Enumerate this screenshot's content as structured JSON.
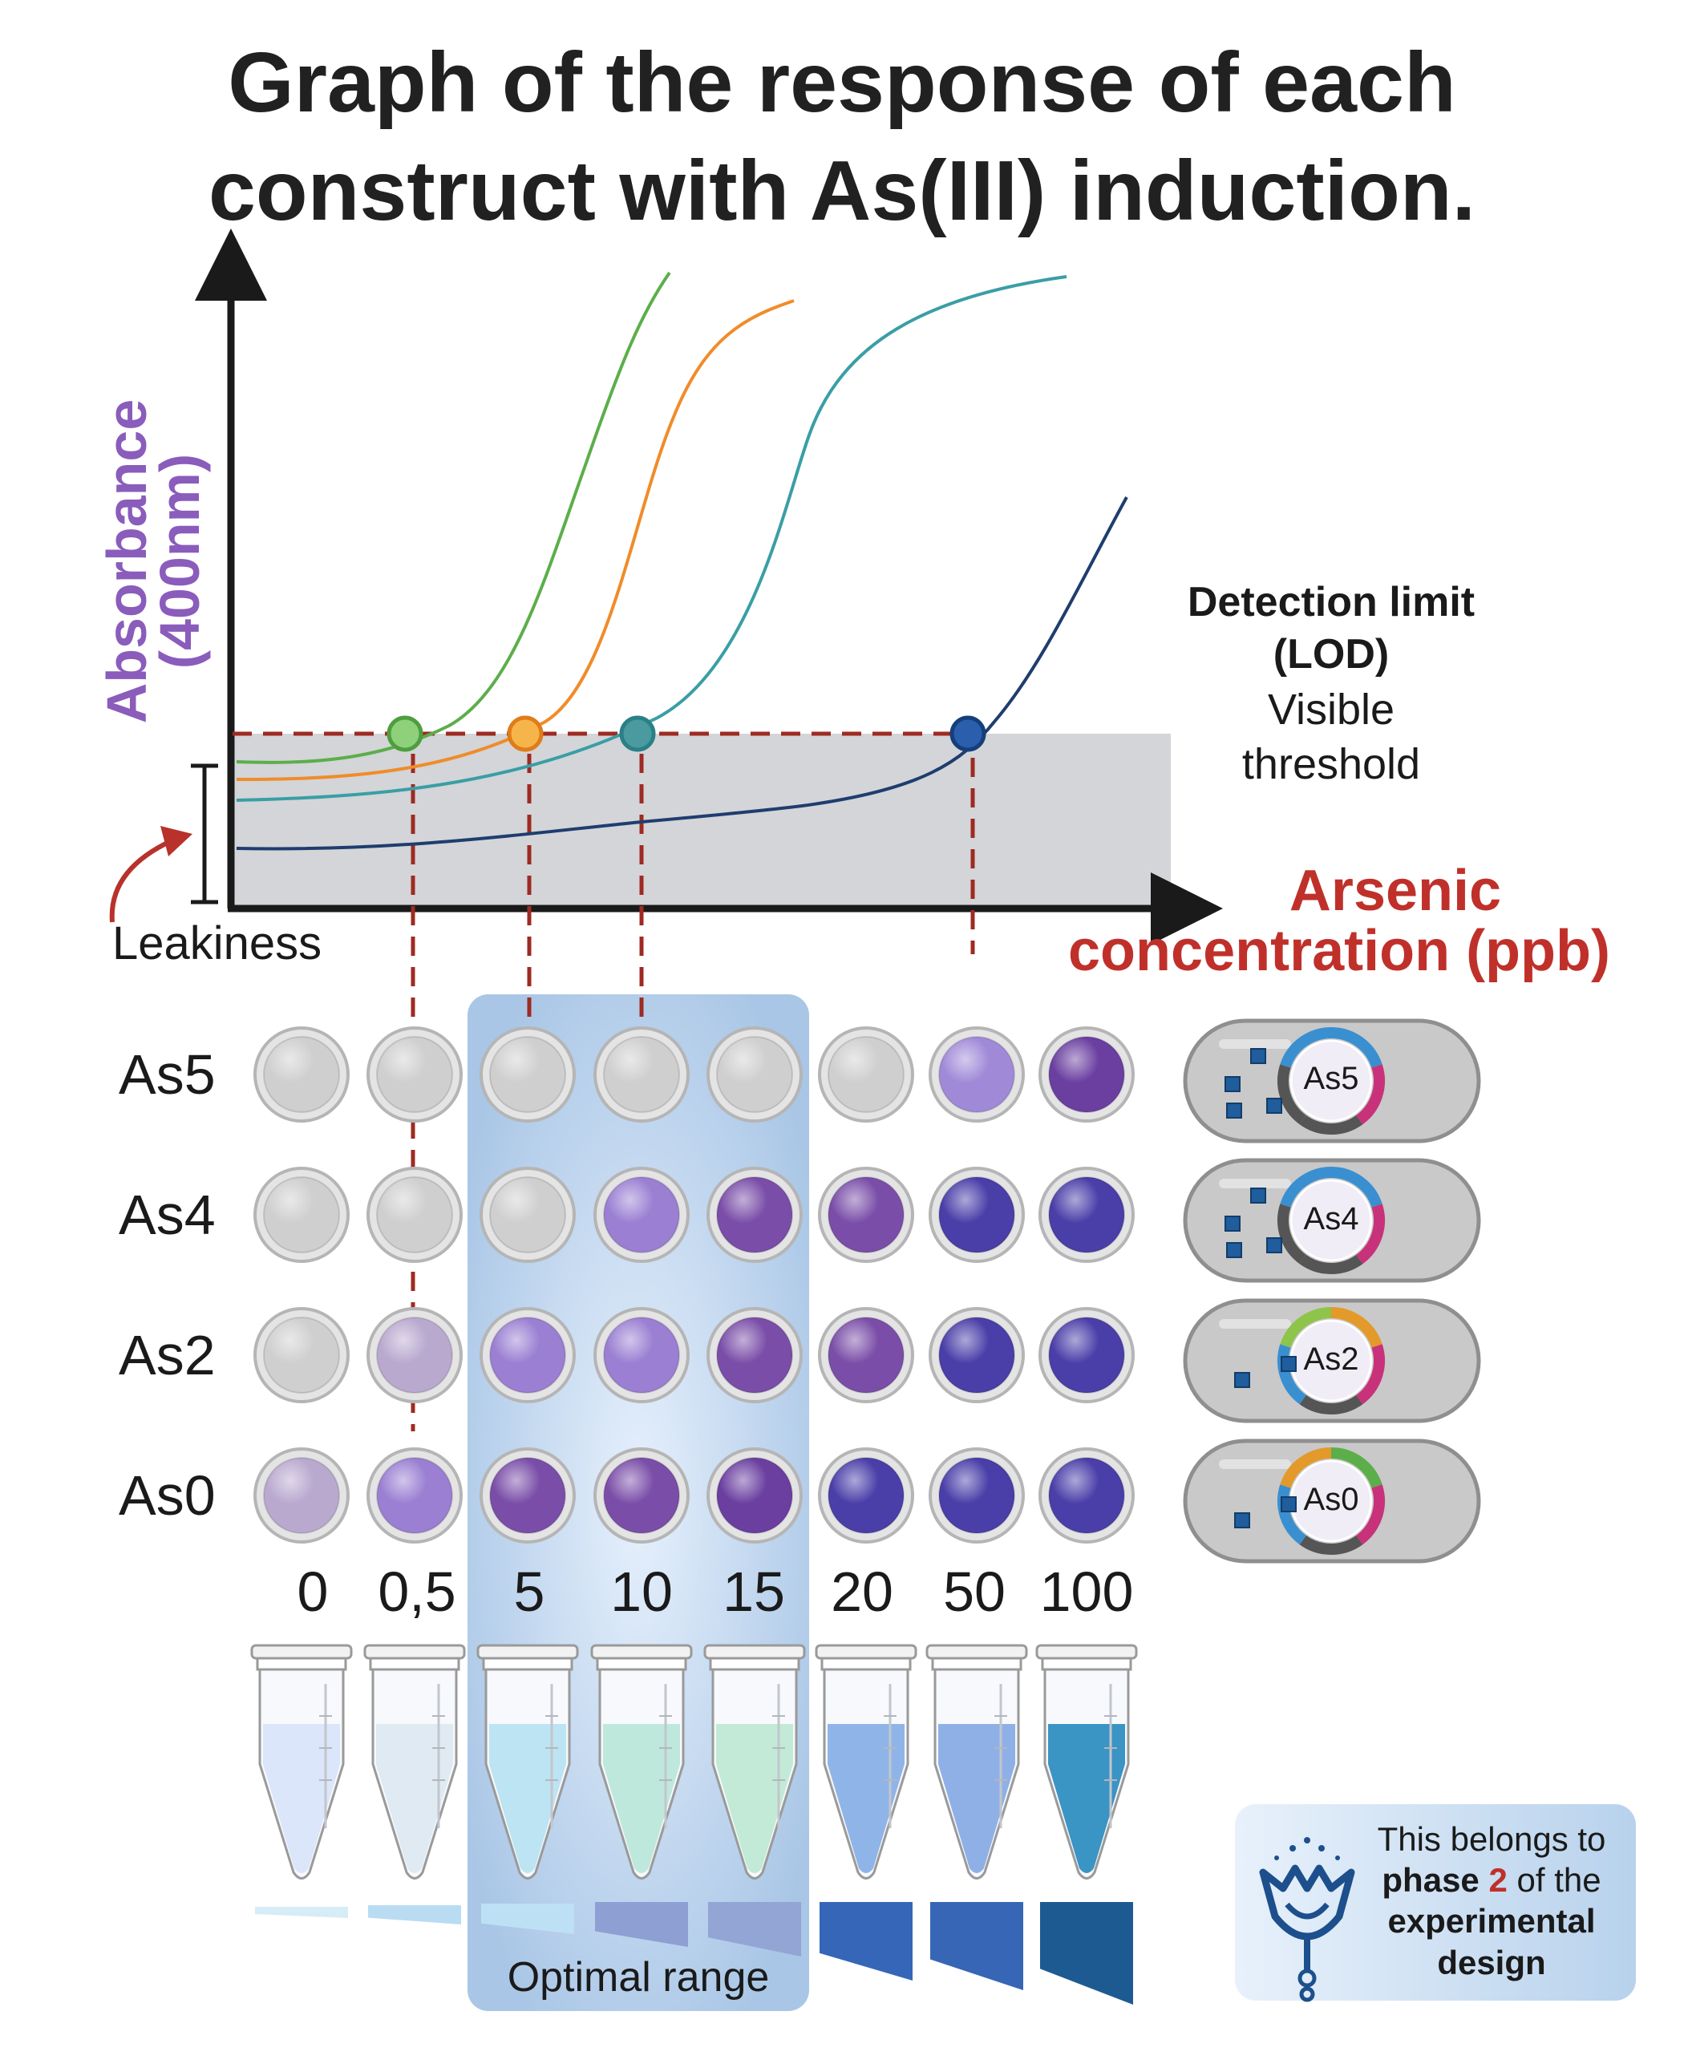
{
  "title": {
    "line1": "Graph of the response  of each",
    "line2": "construct with As(III) induction."
  },
  "axes": {
    "y_label_line1": "Absorbance",
    "y_label_line2": "(400nm)",
    "x_label_line1": "Arsenic",
    "x_label_line2": "concentration (ppb)"
  },
  "detection": {
    "line1": "Detection limit",
    "line2": "(LOD)",
    "line3": "Visible",
    "line4": "threshold"
  },
  "leakiness_label": "Leakiness",
  "optimal_range_label": "Optimal range",
  "concentrations": [
    "0",
    "0,5",
    "5",
    "10",
    "15",
    "20",
    "50",
    "100"
  ],
  "curves": [
    {
      "construct": "As0",
      "color": "#5cae4b"
    },
    {
      "construct": "As2",
      "color": "#f08c2a"
    },
    {
      "construct": "As4",
      "color": "#3a9ea5"
    },
    {
      "construct": "As5",
      "color": "#1f3d6e"
    }
  ],
  "well_colors": {
    "gray": "#cfcfcf",
    "light_purple": "#a08ad8",
    "med_purple": "#9a7fd2",
    "purple": "#7a4ea8",
    "deep_purple": "#6a3fa0",
    "indigo": "#4a3ea8",
    "faint": "#b9a9cf"
  },
  "rows": [
    {
      "label": "As5",
      "wells": [
        "gray",
        "gray",
        "gray",
        "gray",
        "gray",
        "gray",
        "light_purple",
        "deep_purple"
      ]
    },
    {
      "label": "As4",
      "wells": [
        "gray",
        "gray",
        "gray",
        "med_purple",
        "purple",
        "purple",
        "indigo",
        "indigo"
      ]
    },
    {
      "label": "As2",
      "wells": [
        "gray",
        "faint",
        "med_purple",
        "med_purple",
        "purple",
        "purple",
        "indigo",
        "indigo"
      ]
    },
    {
      "label": "As0",
      "wells": [
        "faint",
        "med_purple",
        "purple",
        "purple",
        "deep_purple",
        "indigo",
        "indigo",
        "indigo"
      ]
    }
  ],
  "tube_colors": [
    "#dbe6fb",
    "#dfeaf2",
    "#bde4f2",
    "#bfe8dc",
    "#c2ead6",
    "#8fb4e8",
    "#8fb0e6",
    "#3a94c4"
  ],
  "strip_colors": [
    "#d6ecf6",
    "#b9dcf3",
    "#bde0f4",
    "#8e9fd4",
    "#93a5d4",
    "#3566b8",
    "#3666b5",
    "#1e5a92"
  ],
  "bacteria": [
    {
      "label": "As5"
    },
    {
      "label": "As4"
    },
    {
      "label": "As2"
    },
    {
      "label": "As0"
    }
  ],
  "phase_box": {
    "line1": "This belongs to",
    "line2_bold": "phase",
    "line2_number": "2",
    "line2_rest": "of the",
    "line3": "experimental",
    "line4": "design"
  }
}
